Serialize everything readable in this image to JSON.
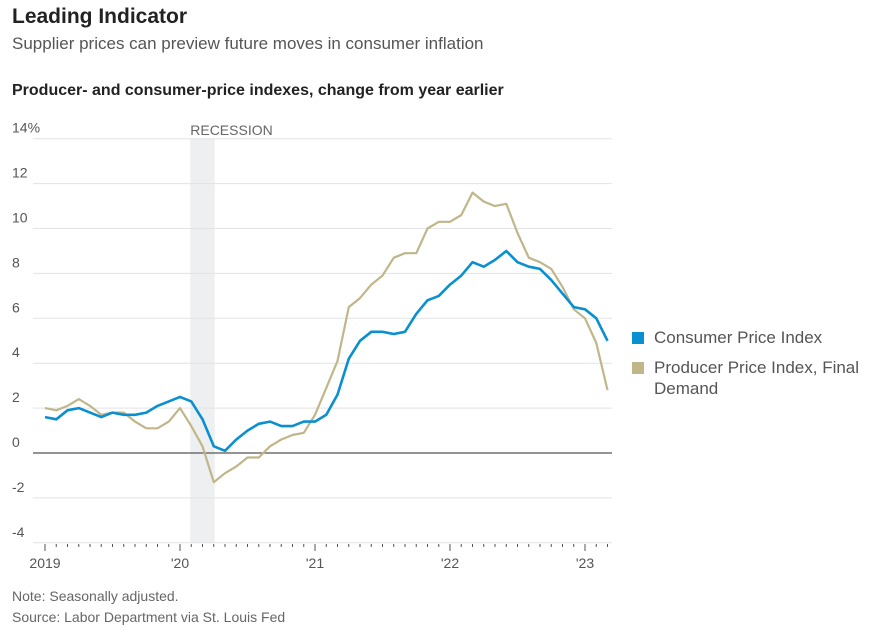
{
  "header": {
    "title": "Leading Indicator",
    "subtitle": "Supplier prices can preview future moves in consumer inflation"
  },
  "chart_data": {
    "type": "line",
    "title": "Producer- and consumer-price indexes, change from year earlier",
    "xlabel": "",
    "ylabel": "",
    "ylim": [
      -4,
      14
    ],
    "y_ticks": [
      "14%",
      "12",
      "10",
      "8",
      "6",
      "4",
      "2",
      "0",
      "-2",
      "-4"
    ],
    "y_tick_values": [
      14,
      12,
      10,
      8,
      6,
      4,
      2,
      0,
      -2,
      -4
    ],
    "x_ticks": [
      "2019",
      "'20",
      "'21",
      "'22",
      "'23"
    ],
    "x_start": "2019-01",
    "x_frequency": "monthly",
    "annotation": "RECESSION",
    "recession_months": [
      13,
      15
    ],
    "grid": true,
    "legend_position": "right",
    "series": [
      {
        "name": "Consumer Price Index",
        "color": "#0a8fd1",
        "values": [
          1.6,
          1.5,
          1.9,
          2.0,
          1.8,
          1.6,
          1.8,
          1.7,
          1.7,
          1.8,
          2.1,
          2.3,
          2.5,
          2.3,
          1.5,
          0.3,
          0.1,
          0.6,
          1.0,
          1.3,
          1.4,
          1.2,
          1.2,
          1.4,
          1.4,
          1.7,
          2.6,
          4.2,
          5.0,
          5.4,
          5.4,
          5.3,
          5.4,
          6.2,
          6.8,
          7.0,
          7.5,
          7.9,
          8.5,
          8.3,
          8.6,
          9.0,
          8.5,
          8.3,
          8.2,
          7.7,
          7.1,
          6.5,
          6.4,
          6.0,
          5.0
        ]
      },
      {
        "name": "Producer Price Index, Final Demand",
        "color": "#c0b68a",
        "values": [
          2.0,
          1.9,
          2.1,
          2.4,
          2.1,
          1.7,
          1.8,
          1.8,
          1.4,
          1.1,
          1.1,
          1.4,
          2.0,
          1.2,
          0.3,
          -1.3,
          -0.9,
          -0.6,
          -0.2,
          -0.2,
          0.3,
          0.6,
          0.8,
          0.9,
          1.7,
          2.9,
          4.1,
          6.5,
          6.9,
          7.5,
          7.9,
          8.7,
          8.9,
          8.9,
          10.0,
          10.3,
          10.3,
          10.6,
          11.6,
          11.2,
          11.0,
          11.1,
          9.8,
          8.7,
          8.5,
          8.2,
          7.4,
          6.4,
          6.0,
          4.9,
          2.8
        ]
      }
    ]
  },
  "footer": {
    "note": "Note: Seasonally adjusted.",
    "source": "Source: Labor Department via St. Louis Fed"
  }
}
